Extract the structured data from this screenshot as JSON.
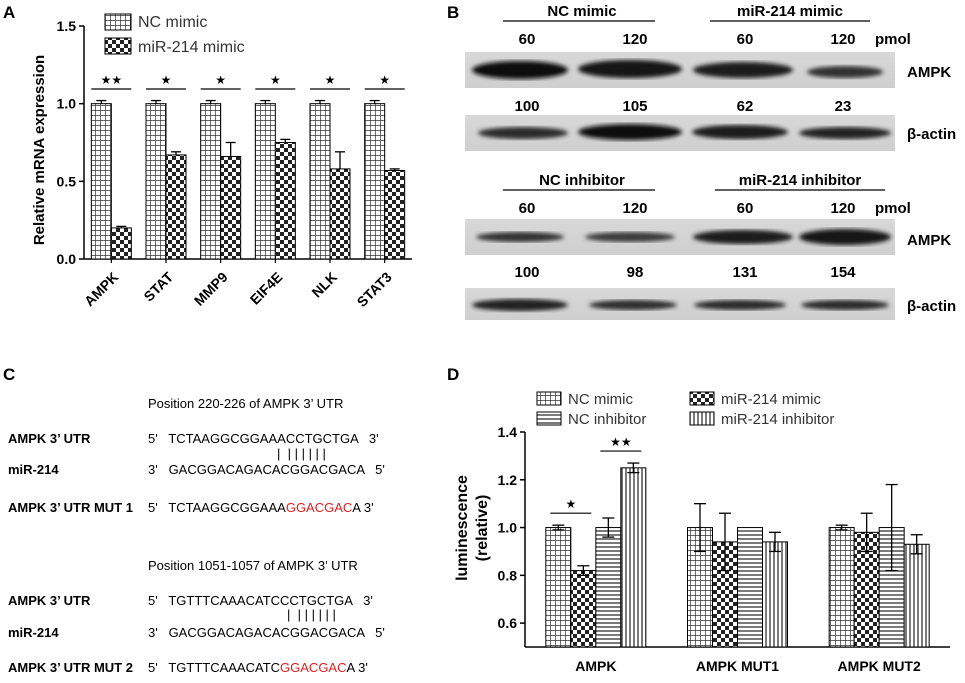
{
  "panel_labels": {
    "a": "A",
    "b": "B",
    "c": "C",
    "d": "D"
  },
  "chart_data": [
    {
      "id": "A",
      "type": "bar",
      "ylabel": "Relative mRNA  expression",
      "xlabel": "",
      "ylim": [
        0,
        1.5
      ],
      "yticks": [
        "0.0",
        "0.5",
        "1.0",
        "1.5"
      ],
      "categories": [
        "AMPK",
        "STAT",
        "MMP9",
        "EIF4E",
        "NLK",
        "STAT3"
      ],
      "series": [
        {
          "name": "NC mimic",
          "values": [
            1.0,
            1.0,
            1.0,
            1.0,
            1.0,
            1.0
          ],
          "errors": [
            0.02,
            0.02,
            0.02,
            0.02,
            0.02,
            0.02
          ],
          "pattern": "grid"
        },
        {
          "name": "miR-214 mimic",
          "values": [
            0.2,
            0.67,
            0.66,
            0.75,
            0.58,
            0.57
          ],
          "errors": [
            0.01,
            0.02,
            0.09,
            0.02,
            0.11,
            0.01
          ],
          "pattern": "check"
        }
      ],
      "significance": [
        "★★",
        "★",
        "★",
        "★",
        "★",
        "★"
      ]
    },
    {
      "id": "D",
      "type": "bar",
      "ylabel": "luminescence\n(relative)",
      "xlabel": "",
      "ylim": [
        0.5,
        1.4
      ],
      "yticks": [
        "0.6",
        "0.8",
        "1.0",
        "1.2",
        "1.4"
      ],
      "categories": [
        "AMPK",
        "AMPK MUT1",
        "AMPK MUT2"
      ],
      "series": [
        {
          "name": "NC mimic",
          "values": [
            1.0,
            1.0,
            1.0
          ],
          "errors": [
            0.01,
            0.1,
            0.01
          ],
          "pattern": "grid"
        },
        {
          "name": "miR-214 mimic",
          "values": [
            0.82,
            0.94,
            0.98
          ],
          "errors": [
            0.02,
            0.12,
            0.08
          ],
          "pattern": "check"
        },
        {
          "name": "NC inhibitor",
          "values": [
            1.0,
            1.0,
            1.0
          ],
          "errors": [
            0.04,
            0.0,
            0.18
          ],
          "pattern": "hlines"
        },
        {
          "name": "miR-214 inhibitor",
          "values": [
            1.25,
            0.94,
            0.93
          ],
          "errors": [
            0.02,
            0.04,
            0.04
          ],
          "pattern": "vlines"
        }
      ],
      "significance": [
        {
          "text": "★",
          "between": [
            0,
            1
          ],
          "group": 0
        },
        {
          "text": "★★",
          "between": [
            2,
            3
          ],
          "group": 0
        }
      ]
    }
  ],
  "panel_b": {
    "top": {
      "groups": [
        "NC mimic",
        "miR-214 mimic"
      ],
      "doses": [
        "60",
        "120",
        "60",
        "120"
      ],
      "unit": "pmol",
      "target_label": "AMPK",
      "control_label": "β-actin",
      "values": [
        "100",
        "105",
        "62",
        "23"
      ]
    },
    "bottom": {
      "groups": [
        "NC inhibitor",
        "miR-214 inhibitor"
      ],
      "doses": [
        "60",
        "120",
        "60",
        "120"
      ],
      "unit": "pmol",
      "target_label": "AMPK",
      "control_label": "β-actin",
      "values": [
        "100",
        "98",
        "131",
        "154"
      ]
    }
  },
  "panel_c": {
    "block1": {
      "position": "Position 220-226 of AMPK 3’ UTR",
      "utr_label": "AMPK 3’ UTR",
      "utr_prefix": "5'",
      "utr_seq": "TCTAAGGCGGAAACCTGCTGA",
      "utr_suffix": "3'",
      "pairing": "|  | | | | | |",
      "mir_label": "miR-214",
      "mir_prefix": "3'",
      "mir_seq": "GACGGACAGACACGGACGACA",
      "mir_suffix": "5'",
      "mut_label": "AMPK 3’ UTR MUT 1",
      "mut_prefix": "5'",
      "mut_seq_start": "TCTAAGGCGGAAA",
      "mut_seq_red": "GGACGAC",
      "mut_seq_end": "A",
      "mut_suffix": "3'"
    },
    "block2": {
      "position": "Position 1051-1057 of AMPK 3’ UTR",
      "utr_label": "AMPK 3’ UTR",
      "utr_prefix": "5'",
      "utr_seq": "TGTTTCAAACATCCCTGCTGA",
      "utr_suffix": "3'",
      "pairing": "|  | | | | | |",
      "mir_label": "miR-214",
      "mir_prefix": "3'",
      "mir_seq": "GACGGACAGACACGGACGACA",
      "mir_suffix": "5'",
      "mut_label": "AMPK 3’ UTR MUT 2",
      "mut_prefix": "5'",
      "mut_seq_start": "TGTTTCAAACATC",
      "mut_seq_red": "GGACGAC",
      "mut_seq_end": "A",
      "mut_suffix": "3'"
    }
  }
}
